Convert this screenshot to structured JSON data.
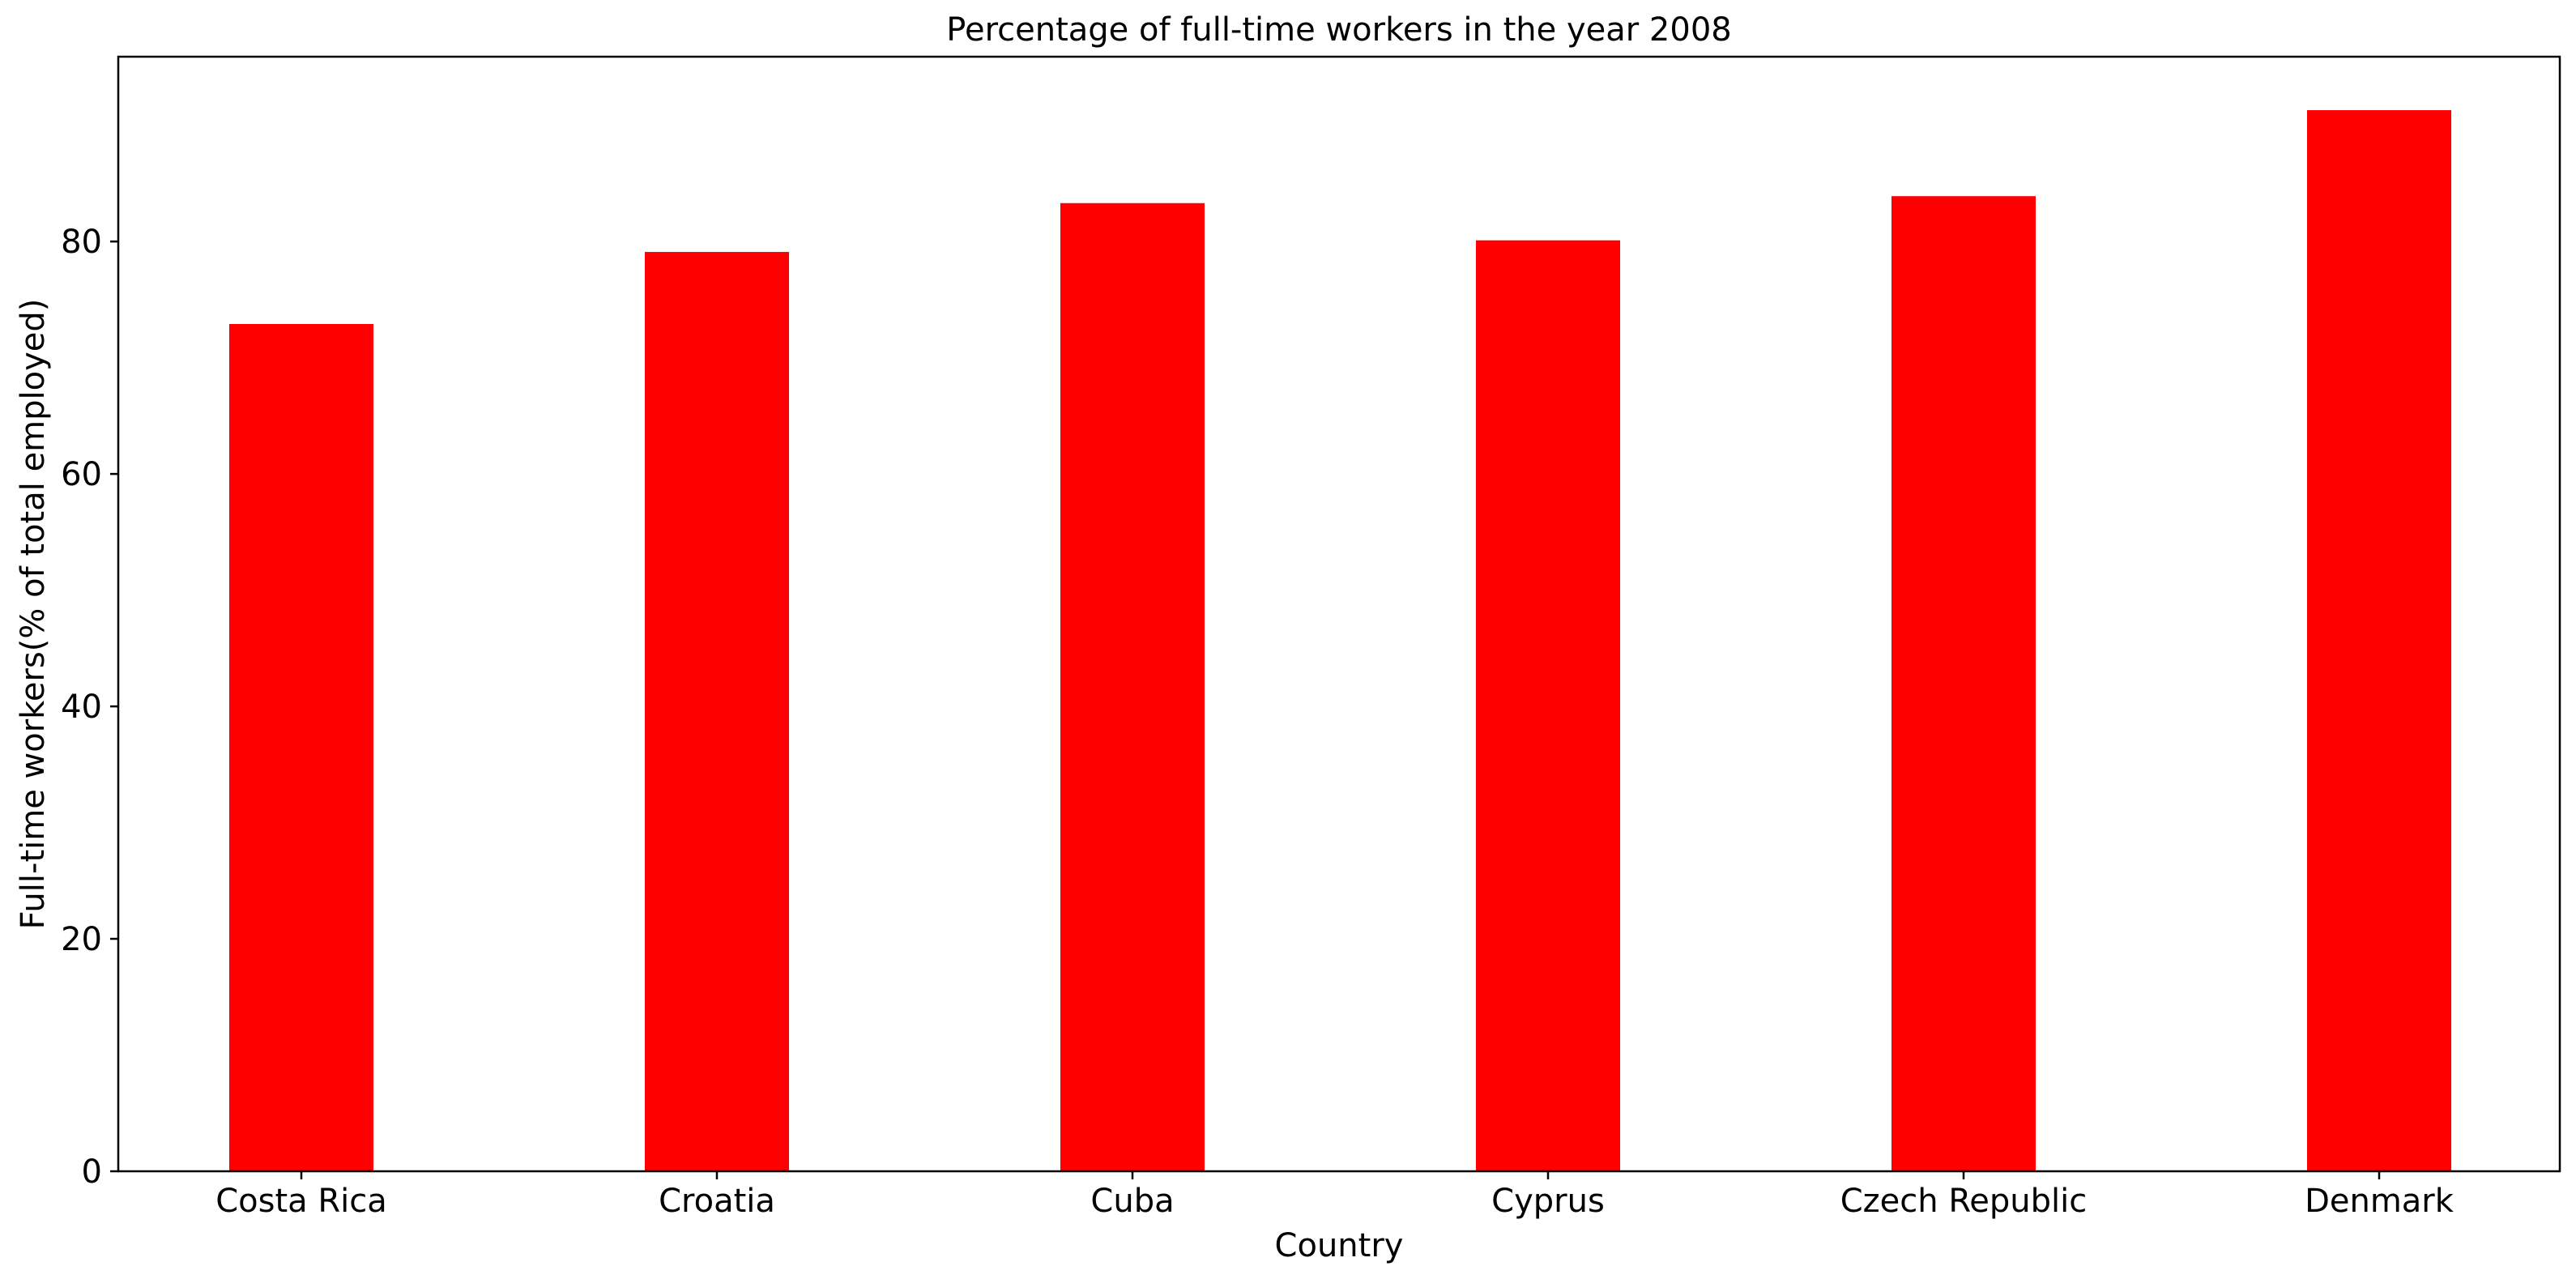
{
  "chart_data": {
    "type": "bar",
    "title": "Percentage of full-time workers in the year 2008",
    "xlabel": "Country",
    "ylabel": "Full-time workers(% of total employed)",
    "categories": [
      "Costa Rica",
      "Croatia",
      "Cuba",
      "Cyprus",
      "Czech Republic",
      "Denmark"
    ],
    "values": [
      72.9,
      79.1,
      83.3,
      80.1,
      83.9,
      91.3
    ],
    "yticks": [
      0,
      20,
      40,
      60,
      80
    ],
    "ylim": [
      0,
      95.9
    ],
    "grid": false,
    "bar_color": "#ff0000"
  }
}
